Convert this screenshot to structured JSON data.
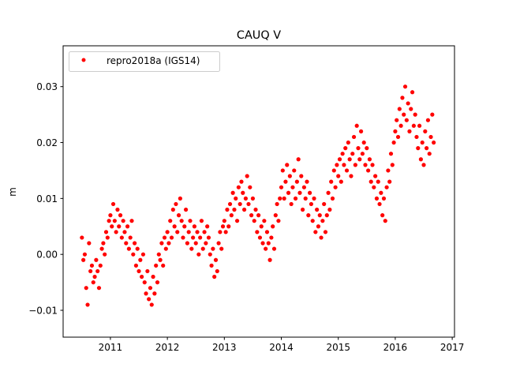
{
  "chart_data": {
    "type": "scatter",
    "title": "CAUQ V",
    "xlabel": "",
    "ylabel": "m",
    "xlim": [
      2010.17,
      2017.04
    ],
    "ylim": [
      -0.0148,
      0.0373
    ],
    "xticks": [
      2011,
      2012,
      2013,
      2014,
      2015,
      2016,
      2017
    ],
    "xtick_labels": [
      "2011",
      "2012",
      "2013",
      "2014",
      "2015",
      "2016",
      "2017"
    ],
    "yticks": [
      -0.01,
      0.0,
      0.01,
      0.02,
      0.03
    ],
    "ytick_labels": [
      "−0.01",
      "0.00",
      "0.01",
      "0.02",
      "0.03"
    ],
    "grid": false,
    "legend_position": "top-left",
    "series": [
      {
        "name": "repro2018a (IGS14)",
        "color": "#ff0000",
        "x_start": 2010.5,
        "x_step": 0.025,
        "values": [
          0.003,
          -0.001,
          0.0,
          -0.006,
          -0.009,
          0.002,
          -0.003,
          -0.002,
          -0.005,
          -0.004,
          -0.001,
          -0.003,
          -0.006,
          -0.002,
          0.001,
          0.002,
          0.0,
          0.004,
          0.003,
          0.006,
          0.007,
          0.005,
          0.009,
          0.006,
          0.004,
          0.008,
          0.005,
          0.007,
          0.003,
          0.006,
          0.004,
          0.002,
          0.005,
          0.001,
          0.003,
          0.006,
          0.0,
          0.002,
          -0.002,
          0.001,
          -0.003,
          -0.001,
          -0.004,
          0.0,
          -0.005,
          -0.007,
          -0.003,
          -0.008,
          -0.006,
          -0.009,
          -0.004,
          -0.007,
          -0.002,
          -0.005,
          0.0,
          -0.001,
          0.002,
          -0.002,
          0.003,
          0.001,
          0.004,
          0.002,
          0.006,
          0.003,
          0.008,
          0.005,
          0.009,
          0.004,
          0.007,
          0.01,
          0.006,
          0.003,
          0.005,
          0.008,
          0.002,
          0.004,
          0.006,
          0.001,
          0.003,
          0.005,
          0.002,
          0.004,
          0.0,
          0.003,
          0.006,
          0.001,
          0.004,
          0.002,
          0.005,
          0.003,
          0.0,
          -0.002,
          0.001,
          -0.004,
          -0.001,
          -0.003,
          0.002,
          0.004,
          0.001,
          0.005,
          0.006,
          0.004,
          0.008,
          0.005,
          0.009,
          0.007,
          0.011,
          0.008,
          0.01,
          0.006,
          0.012,
          0.009,
          0.013,
          0.011,
          0.008,
          0.01,
          0.014,
          0.009,
          0.012,
          0.007,
          0.01,
          0.006,
          0.008,
          0.004,
          0.007,
          0.003,
          0.005,
          0.002,
          0.006,
          0.001,
          0.004,
          0.002,
          -0.001,
          0.003,
          0.005,
          0.001,
          0.007,
          0.009,
          0.006,
          0.01,
          0.012,
          0.015,
          0.01,
          0.013,
          0.016,
          0.011,
          0.014,
          0.009,
          0.012,
          0.015,
          0.01,
          0.013,
          0.017,
          0.011,
          0.014,
          0.008,
          0.012,
          0.01,
          0.013,
          0.007,
          0.011,
          0.009,
          0.006,
          0.01,
          0.004,
          0.008,
          0.005,
          0.007,
          0.003,
          0.006,
          0.009,
          0.004,
          0.007,
          0.011,
          0.008,
          0.013,
          0.01,
          0.015,
          0.012,
          0.016,
          0.014,
          0.017,
          0.013,
          0.018,
          0.016,
          0.019,
          0.015,
          0.02,
          0.017,
          0.014,
          0.018,
          0.021,
          0.016,
          0.023,
          0.019,
          0.017,
          0.022,
          0.018,
          0.02,
          0.016,
          0.019,
          0.015,
          0.017,
          0.013,
          0.016,
          0.012,
          0.014,
          0.01,
          0.013,
          0.009,
          0.011,
          0.007,
          0.01,
          0.006,
          0.012,
          0.015,
          0.013,
          0.018,
          0.016,
          0.02,
          0.022,
          0.024,
          0.021,
          0.026,
          0.023,
          0.028,
          0.025,
          0.03,
          0.024,
          0.027,
          0.022,
          0.026,
          0.029,
          0.023,
          0.025,
          0.021,
          0.019,
          0.023,
          0.017,
          0.02,
          0.016,
          0.022,
          0.019,
          0.024,
          0.018,
          0.021,
          0.025,
          0.02
        ]
      }
    ]
  }
}
